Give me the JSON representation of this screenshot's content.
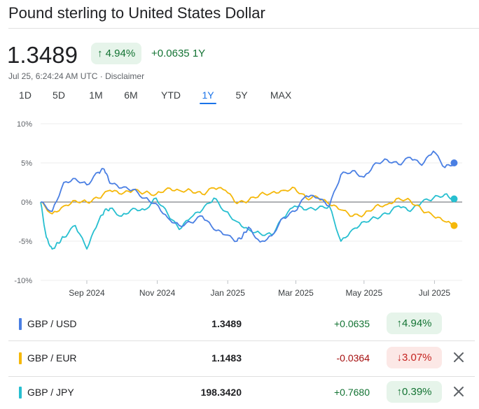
{
  "header": {
    "title": "Pound sterling to United States Dollar",
    "price": "1.3489",
    "pct_change": "4.94%",
    "abs_change": "+0.0635",
    "period": "1Y",
    "timestamp": "Jul 25, 6:24:24 AM UTC",
    "separator": " · ",
    "disclaimer": "Disclaimer"
  },
  "ranges": [
    {
      "label": "1D",
      "active": false
    },
    {
      "label": "5D",
      "active": false
    },
    {
      "label": "1M",
      "active": false
    },
    {
      "label": "6M",
      "active": false
    },
    {
      "label": "YTD",
      "active": false
    },
    {
      "label": "1Y",
      "active": true
    },
    {
      "label": "5Y",
      "active": false
    },
    {
      "label": "MAX",
      "active": false
    }
  ],
  "colors": {
    "usd": "#4a7fe3",
    "eur": "#f5b80a",
    "jpy": "#27bfd0",
    "positive": "#137333",
    "negative": "#c5221f",
    "active_tab": "#1a73e8"
  },
  "chart_data": {
    "type": "line",
    "ylim": [
      -10,
      10
    ],
    "yticks": [
      "10%",
      "5%",
      "0%",
      "-5%",
      "-10%"
    ],
    "xticks": [
      "Sep 2024",
      "Nov 2024",
      "Jan 2025",
      "Mar 2025",
      "May 2025",
      "Jul 2025"
    ],
    "xlim_days": [
      0,
      365
    ],
    "xtick_days": [
      40,
      101,
      162,
      221,
      280,
      341
    ],
    "grid": true,
    "baseline": 0,
    "series": [
      {
        "name": "GBP / USD",
        "color": "#4a7fe3",
        "x": [
          0,
          10,
          20,
          30,
          40,
          50,
          55,
          60,
          70,
          80,
          90,
          100,
          110,
          120,
          130,
          140,
          150,
          160,
          170,
          175,
          180,
          190,
          200,
          210,
          220,
          230,
          240,
          250,
          260,
          270,
          280,
          290,
          300,
          310,
          320,
          330,
          340,
          350,
          358
        ],
        "y": [
          0,
          -1.2,
          2.5,
          3.0,
          2.2,
          3.8,
          4.2,
          2.4,
          1.8,
          1.6,
          0.5,
          -0.2,
          -2.0,
          -3.0,
          -2.6,
          -1.8,
          -3.5,
          -4.2,
          -5.0,
          -4.3,
          -3.2,
          -5.1,
          -4.3,
          -2.0,
          -1.2,
          0.8,
          0.5,
          -0.5,
          3.5,
          4.0,
          3.2,
          5.0,
          5.4,
          4.8,
          5.7,
          4.7,
          6.5,
          4.4,
          5.0
        ]
      },
      {
        "name": "GBP / EUR",
        "color": "#f5b80a",
        "x": [
          0,
          10,
          20,
          30,
          40,
          50,
          60,
          70,
          80,
          90,
          100,
          110,
          120,
          130,
          140,
          150,
          160,
          170,
          180,
          190,
          200,
          210,
          220,
          230,
          240,
          250,
          260,
          270,
          280,
          290,
          300,
          310,
          320,
          330,
          340,
          350,
          358
        ],
        "y": [
          0,
          -1.5,
          -0.5,
          0.2,
          0.0,
          0.5,
          1.5,
          1.0,
          1.5,
          1.2,
          1.0,
          1.8,
          1.5,
          1.5,
          1.0,
          1.8,
          1.5,
          -0.2,
          0.2,
          1.0,
          1.2,
          1.5,
          1.8,
          0.5,
          0.6,
          -0.3,
          -1.0,
          -1.8,
          -1.6,
          -0.5,
          -0.3,
          0.5,
          0.2,
          -1.0,
          -1.8,
          -2.5,
          -3.0
        ]
      },
      {
        "name": "GBP / JPY",
        "color": "#27bfd0",
        "x": [
          0,
          5,
          10,
          15,
          20,
          30,
          40,
          50,
          55,
          60,
          70,
          80,
          90,
          100,
          110,
          120,
          130,
          140,
          150,
          160,
          170,
          180,
          190,
          200,
          210,
          220,
          230,
          240,
          250,
          260,
          270,
          280,
          290,
          300,
          310,
          320,
          330,
          340,
          350,
          358
        ],
        "y": [
          0,
          -4.5,
          -6.0,
          -5.2,
          -4.5,
          -3.0,
          -6.0,
          -2.5,
          -1.2,
          -0.8,
          -1.8,
          -0.8,
          -1.0,
          0.5,
          -1.5,
          -3.5,
          -2.0,
          -1.0,
          0.5,
          -1.2,
          -2.5,
          -3.5,
          -4.0,
          -4.2,
          -2.0,
          -0.5,
          -1.0,
          -0.8,
          -0.5,
          -5.0,
          -3.5,
          -2.5,
          -2.0,
          -1.5,
          -0.5,
          -1.2,
          0.0,
          0.5,
          1.0,
          0.4
        ]
      }
    ]
  },
  "watchlist": [
    {
      "pair": "GBP / USD",
      "rate": "1.3489",
      "abs": "+0.0635",
      "pct": "4.94%",
      "direction": "up",
      "removable": false
    },
    {
      "pair": "GBP / EUR",
      "rate": "1.1483",
      "abs": "-0.0364",
      "pct": "3.07%",
      "direction": "down",
      "removable": true
    },
    {
      "pair": "GBP / JPY",
      "rate": "198.3420",
      "abs": "+0.7680",
      "pct": "0.39%",
      "direction": "up",
      "removable": true
    }
  ]
}
